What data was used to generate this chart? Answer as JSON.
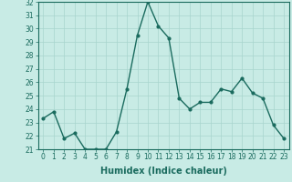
{
  "x": [
    0,
    1,
    2,
    3,
    4,
    5,
    6,
    7,
    8,
    9,
    10,
    11,
    12,
    13,
    14,
    15,
    16,
    17,
    18,
    19,
    20,
    21,
    22,
    23
  ],
  "y": [
    23.3,
    23.8,
    21.8,
    22.2,
    21.0,
    21.0,
    21.0,
    22.3,
    25.5,
    29.5,
    32.0,
    30.2,
    29.3,
    24.8,
    24.0,
    24.5,
    24.5,
    25.5,
    25.3,
    26.3,
    25.2,
    24.8,
    22.8,
    21.8
  ],
  "line_color": "#1a6b5e",
  "marker": "o",
  "marker_size": 2.0,
  "bg_color": "#c8ebe5",
  "grid_color": "#a8d5cd",
  "xlabel": "Humidex (Indice chaleur)",
  "ylim": [
    21,
    32
  ],
  "xlim": [
    -0.5,
    23.5
  ],
  "yticks": [
    21,
    22,
    23,
    24,
    25,
    26,
    27,
    28,
    29,
    30,
    31,
    32
  ],
  "xticks": [
    0,
    1,
    2,
    3,
    4,
    5,
    6,
    7,
    8,
    9,
    10,
    11,
    12,
    13,
    14,
    15,
    16,
    17,
    18,
    19,
    20,
    21,
    22,
    23
  ],
  "xlabel_fontsize": 7,
  "tick_fontsize": 5.5,
  "linewidth": 1.0
}
